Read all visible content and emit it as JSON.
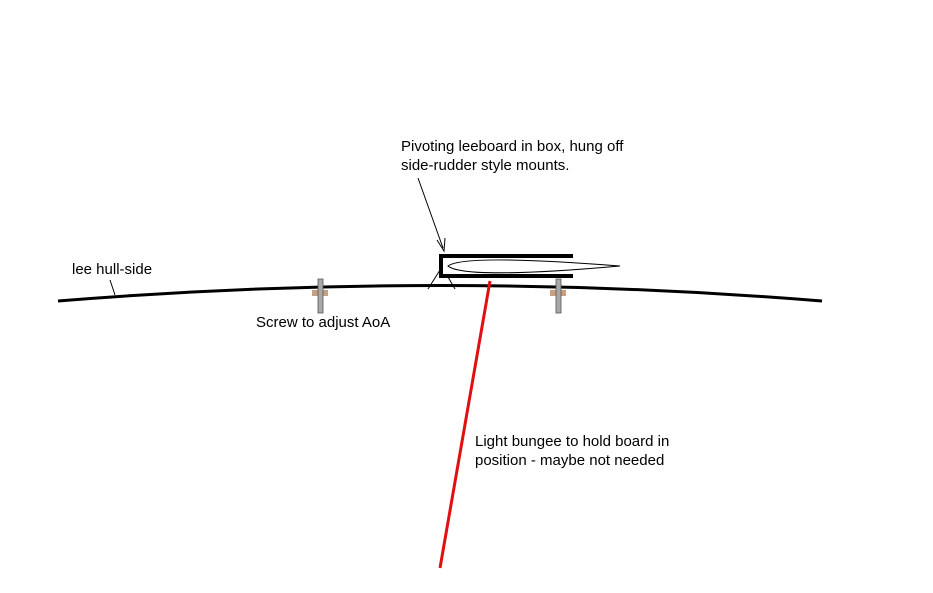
{
  "labels": {
    "leeboard": [
      "Pivoting leeboard in box, hung off",
      "side-rudder style mounts."
    ],
    "hull": "lee hull-side",
    "screw": "Screw to adjust AoA",
    "bungee": [
      "Light bungee to hold board in",
      "position - maybe not needed"
    ]
  },
  "colors": {
    "line": "#000000",
    "bungee": "#e01010",
    "screw_shaft": "#a8a8a8",
    "screw_nut": "#c8a080",
    "background": "#ffffff"
  }
}
